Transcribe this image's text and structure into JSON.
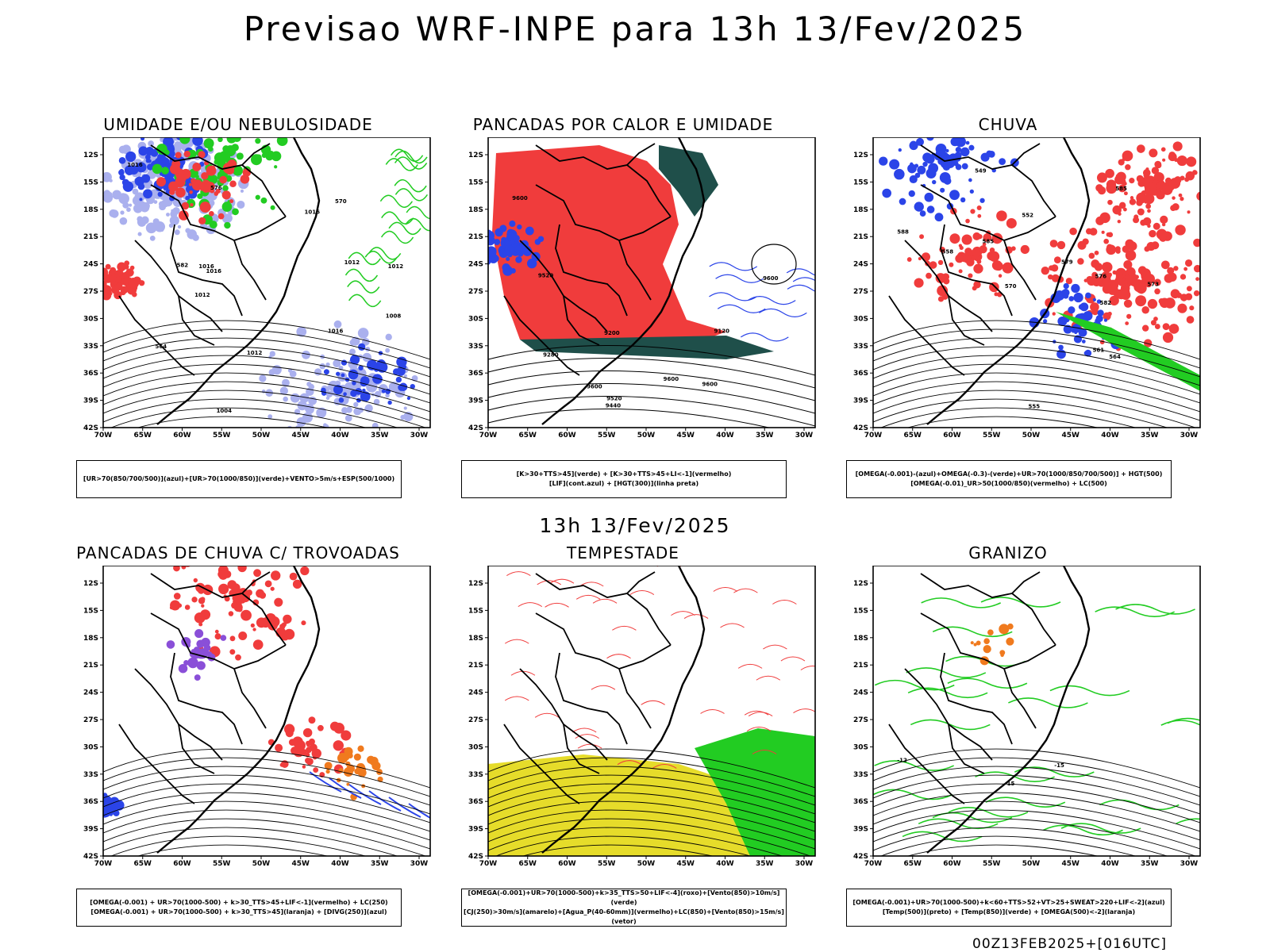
{
  "main_title": "Previsao WRF-INPE  para 13h 13/Fev/2025",
  "mid_title": "13h 13/Fev/2025",
  "stamp": "00Z13FEB2025+[016UTC]",
  "lat_ticks": [
    "12S",
    "15S",
    "18S",
    "21S",
    "24S",
    "27S",
    "30S",
    "33S",
    "36S",
    "39S",
    "42S"
  ],
  "lon_ticks": [
    "70W",
    "65W",
    "60W",
    "55W",
    "50W",
    "45W",
    "40W",
    "35W",
    "30W"
  ],
  "colors": {
    "red": "#f03c3c",
    "blue": "#2b44e8",
    "green": "#22cc22",
    "lavender": "#aab0ee",
    "darkgreen": "#1f4f4a",
    "yellow": "#e6dc2a",
    "orange": "#f07a1e",
    "purple": "#8a4fd8"
  },
  "panels": [
    {
      "title": "UMIDADE E/OU NEBULOSIDADE",
      "legend": [
        "[UR>70(850/700/500)](azul)+[UR>70(1000/850)](verde)+VENTO>5m/s+ESP(500/1000)"
      ],
      "labels": [
        "1016",
        "1012",
        "1016",
        "1016",
        "1012",
        "1012",
        "1016",
        "1016",
        "1012",
        "1008",
        "1004",
        "576",
        "570",
        "564",
        "582"
      ]
    },
    {
      "title": "PANCADAS POR CALOR E UMIDADE",
      "legend": [
        "[K>30+TTS>45](verde) + [K>30+TTS>45+LI<-1](vermelho)",
        "[LIF](cont.azul) + [HGT(300)](linha preta)"
      ],
      "labels": [
        "9600",
        "9600",
        "9600",
        "9600",
        "9600",
        "9520",
        "9520",
        "9440",
        "9280",
        "9200",
        "9120"
      ]
    },
    {
      "title": "CHUVA",
      "legend": [
        "[OMEGA(-0.001)-(azul)+OMEGA(-0.3)-(verde)+UR>70(1000/850/700/500)] + HGT(500)",
        "[OMEGA(-0.01)_UR>50(1000/850)(vermelho) + LC(500)"
      ],
      "labels": [
        "588",
        "585",
        "585",
        "582",
        "579",
        "576",
        "573",
        "570",
        "564",
        "561",
        "558",
        "555",
        "552",
        "549"
      ]
    },
    {
      "title": "PANCADAS DE CHUVA C/ TROVOADAS",
      "legend": [
        "[OMEGA(-0.001) + UR>70(1000-500) + k>30_TTS>45+LIF<-1](vermelho) + LC(250)",
        "[OMEGA(-0.001) + UR>70(1000-500) + k>30_TTS>45](laranja) + [DIVG(250)](azul)"
      ],
      "labels": []
    },
    {
      "title": "TEMPESTADE",
      "legend": [
        "[OMEGA(-0.001)+UR>70(1000-500)+k>35_TTS>50+LIF<-4](roxo)+[Vento(850)>10m/s](verde)",
        "[CJ(250)>30m/s](amarelo)+[Agua_P(40-60mm)](vermelho)+LC(850)+[Vento(850)>15m/s](vetor)"
      ],
      "labels": []
    },
    {
      "title": "GRANIZO",
      "legend": [
        "[OMEGA(-0.001)+UR>70(1000-500)+k<60+TTS>52+VT>25+SWEAT>220+LIF<-2](azul)",
        "[Temp(500)](preto) + [Temp(850)](verde) + [OMEGA(500)<-2](laranja)"
      ],
      "labels": [
        "-12",
        "-15",
        "15"
      ]
    }
  ]
}
